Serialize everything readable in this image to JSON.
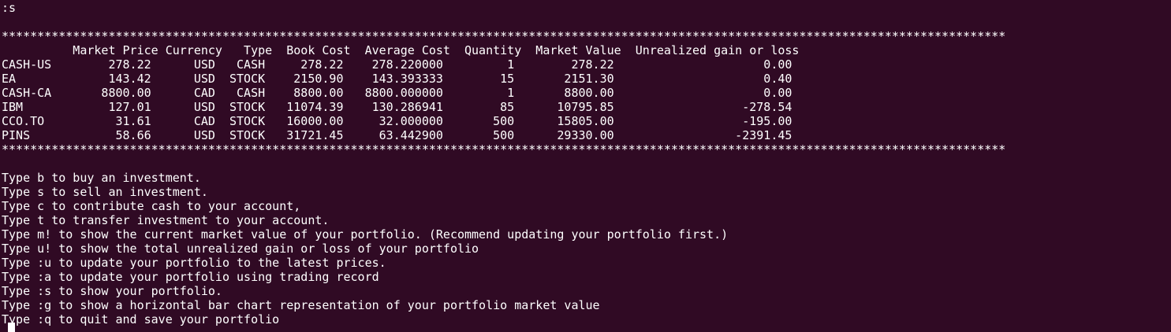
{
  "terminal": {
    "command_echo": ":s",
    "separator": "*********************************************************************************************************************************************",
    "table": {
      "header": "          Market Price Currency   Type  Book Cost  Average Cost  Quantity  Market Value  Unrealized gain or loss",
      "columns": [
        "Market Price",
        "Currency",
        "Type",
        "Book Cost",
        "Average Cost",
        "Quantity",
        "Market Value",
        "Unrealized gain or loss"
      ],
      "rows": [
        {
          "text": "CASH-US        278.22      USD   CASH     278.22    278.220000         1        278.22                     0.00"
        },
        {
          "text": "EA             143.42      USD  STOCK    2150.90    143.393333        15       2151.30                     0.40"
        },
        {
          "text": "CASH-CA       8800.00      CAD   CASH    8800.00   8800.000000         1       8800.00                     0.00"
        },
        {
          "text": "IBM            127.01      USD  STOCK   11074.39    130.286941        85      10795.85                  -278.54"
        },
        {
          "text": "CCO.TO          31.61      CAD  STOCK   16000.00     32.000000       500      15805.00                  -195.00"
        },
        {
          "text": "PINS            58.66      USD  STOCK   31721.45     63.442900       500      29330.00                 -2391.45"
        }
      ]
    },
    "menu": [
      "Type b to buy an investment.",
      "Type s to sell an investment.",
      "Type c to contribute cash to your account,",
      "Type t to transfer investment to your account.",
      "Type m! to show the current market value of your portfolio. (Recommend updating your portfolio first.)",
      "Type u! to show the total unrealized gain or loss of your portfolio",
      "Type :u to update your portfolio to the latest prices.",
      "Type :a to update your portfolio using trading record",
      "Type :s to show your portfolio.",
      "Type :g to show a horizontal bar chart representation of your portfolio market value",
      "Type :q to quit and save your portfolio"
    ]
  }
}
